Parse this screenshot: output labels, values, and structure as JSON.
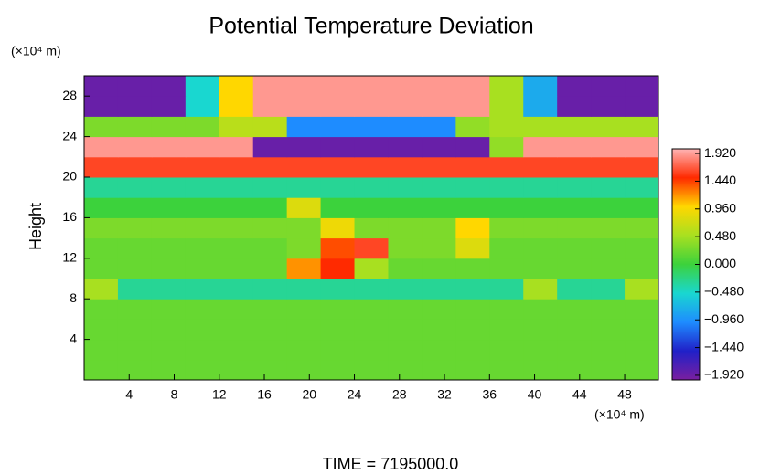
{
  "chart_data": {
    "type": "heatmap",
    "title": "Potential Temperature Deviation",
    "y_label": "Height",
    "y_unit": "(×10⁴ m)",
    "x_unit": "(×10⁴ m)",
    "footer": "TIME = 7195000.0",
    "xlim": [
      0,
      51
    ],
    "xticks": [
      4,
      8,
      12,
      16,
      20,
      24,
      28,
      32,
      36,
      40,
      44,
      48
    ],
    "ylim": [
      0,
      30
    ],
    "yticks": [
      4,
      8,
      12,
      16,
      20,
      24,
      28
    ],
    "z": [
      [
        0.2,
        0.2,
        0.2,
        0.2,
        0.2,
        0.2,
        0.2,
        0.2,
        0.2,
        0.2,
        0.2,
        0.2,
        0.2,
        0.2,
        0.2,
        0.2,
        0.2
      ],
      [
        0.2,
        0.2,
        0.2,
        0.2,
        0.2,
        0.2,
        0.2,
        0.2,
        0.2,
        0.2,
        0.2,
        0.2,
        0.2,
        0.2,
        0.2,
        0.2,
        0.2
      ],
      [
        0.2,
        0.2,
        0.2,
        0.2,
        0.2,
        0.2,
        0.2,
        0.2,
        0.2,
        0.2,
        0.2,
        0.2,
        0.2,
        0.2,
        0.2,
        0.2,
        0.2
      ],
      [
        0.2,
        0.2,
        0.2,
        0.2,
        0.2,
        0.2,
        0.2,
        0.2,
        0.2,
        0.2,
        0.2,
        0.2,
        0.2,
        0.2,
        0.2,
        0.2,
        0.2
      ],
      [
        0.5,
        -0.3,
        -0.3,
        -0.3,
        -0.3,
        -0.3,
        -0.3,
        -0.3,
        -0.3,
        -0.3,
        -0.3,
        -0.3,
        -0.3,
        0.5,
        -0.3,
        -0.3,
        0.5
      ],
      [
        0.2,
        0.2,
        0.2,
        0.2,
        0.2,
        0.2,
        1.2,
        1.5,
        0.5,
        0.2,
        0.2,
        0.2,
        0.2,
        0.2,
        0.2,
        0.2,
        0.2
      ],
      [
        0.2,
        0.2,
        0.2,
        0.2,
        0.2,
        0.2,
        0.3,
        1.4,
        1.6,
        0.3,
        0.3,
        0.8,
        0.2,
        0.2,
        0.2,
        0.2,
        0.2
      ],
      [
        0.3,
        0.3,
        0.3,
        0.3,
        0.3,
        0.3,
        0.3,
        0.9,
        0.3,
        0.3,
        0.3,
        1.0,
        0.3,
        0.3,
        0.3,
        0.3,
        0.3
      ],
      [
        0.0,
        0.0,
        0.0,
        0.0,
        0.0,
        0.0,
        0.8,
        0.0,
        0.0,
        0.0,
        0.0,
        0.0,
        0.0,
        0.0,
        0.0,
        0.0,
        0.0
      ],
      [
        -0.3,
        -0.3,
        -0.3,
        -0.3,
        -0.3,
        -0.3,
        -0.3,
        -0.3,
        -0.3,
        -0.3,
        -0.3,
        -0.3,
        -0.3,
        -0.3,
        -0.3,
        -0.3,
        -0.3
      ],
      [
        1.6,
        1.6,
        1.6,
        1.6,
        1.6,
        1.6,
        1.6,
        1.6,
        1.6,
        1.6,
        1.6,
        1.6,
        1.6,
        1.6,
        1.6,
        1.6,
        1.6
      ],
      [
        1.9,
        1.9,
        1.9,
        1.9,
        1.9,
        -1.9,
        -1.9,
        -1.9,
        -1.9,
        -1.9,
        -1.9,
        -1.9,
        0.4,
        1.9,
        1.9,
        1.9,
        1.9
      ],
      [
        0.3,
        0.3,
        0.3,
        0.3,
        0.6,
        0.6,
        -1.0,
        -1.0,
        -1.0,
        -1.0,
        -1.0,
        0.4,
        0.5,
        0.5,
        0.5,
        0.5,
        0.5
      ],
      [
        -1.9,
        -1.9,
        -1.9,
        -0.5,
        1.0,
        1.9,
        1.9,
        1.9,
        1.9,
        1.9,
        1.9,
        1.9,
        0.5,
        -0.8,
        -1.9,
        -1.9,
        -1.9
      ],
      [
        -1.9,
        -1.9,
        -1.9,
        -0.5,
        1.0,
        1.9,
        1.9,
        1.9,
        1.9,
        1.9,
        1.9,
        1.9,
        0.5,
        -0.8,
        -1.9,
        -1.9,
        -1.9
      ]
    ],
    "zlim": [
      -2,
      2
    ],
    "zticks": [
      {
        "value": 1.92,
        "label": "1.920"
      },
      {
        "value": 1.44,
        "label": "1.440"
      },
      {
        "value": 0.96,
        "label": "0.960"
      },
      {
        "value": 0.48,
        "label": "0.480"
      },
      {
        "value": 0,
        "label": "0.000"
      },
      {
        "value": -0.48,
        "label": "−0.480"
      },
      {
        "value": -0.96,
        "label": "−0.960"
      },
      {
        "value": -1.44,
        "label": "−1.440"
      },
      {
        "value": -1.92,
        "label": "−1.920"
      }
    ],
    "colormap": [
      "#7a1fa0",
      "#2020c8",
      "#1e8cff",
      "#19d7d0",
      "#3cd23c",
      "#a8e020",
      "#ffd700",
      "#ff2a00",
      "#ffb4b4"
    ]
  }
}
